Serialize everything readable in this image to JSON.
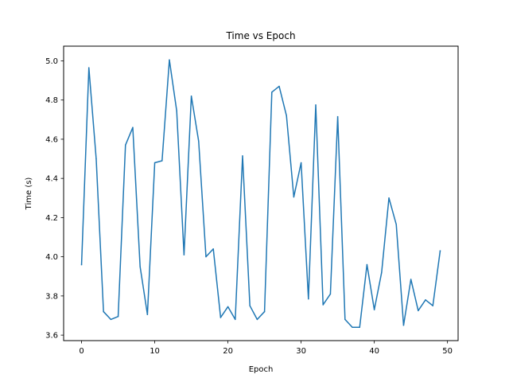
{
  "chart_data": {
    "type": "line",
    "title": "Time vs Epoch",
    "xlabel": "Epoch",
    "ylabel": "Time (s)",
    "xlim": [
      -2.45,
      51.45
    ],
    "ylim": [
      3.572,
      5.075
    ],
    "x_ticks": [
      0,
      10,
      20,
      30,
      40,
      50
    ],
    "y_ticks": [
      3.6,
      3.8,
      4.0,
      4.2,
      4.4,
      4.6,
      4.8,
      5.0
    ],
    "x_tick_labels": [
      "0",
      "10",
      "20",
      "30",
      "40",
      "50"
    ],
    "y_tick_labels": [
      "3.6",
      "3.8",
      "4.0",
      "4.2",
      "4.4",
      "4.6",
      "4.8",
      "5.0"
    ],
    "grid": false,
    "legend": "none",
    "series": [
      {
        "color": "#1f77b4",
        "x": [
          0,
          1,
          2,
          3,
          4,
          5,
          6,
          7,
          8,
          9,
          10,
          11,
          12,
          13,
          14,
          15,
          16,
          17,
          18,
          19,
          20,
          21,
          22,
          23,
          24,
          25,
          26,
          27,
          28,
          29,
          30,
          31,
          32,
          33,
          34,
          35,
          36,
          37,
          38,
          39,
          40,
          41,
          42,
          43,
          44,
          45,
          46,
          47,
          48,
          49
        ],
        "values": [
          3.96,
          4.965,
          4.5,
          3.72,
          3.68,
          3.695,
          4.57,
          4.66,
          3.95,
          3.705,
          4.48,
          4.49,
          5.005,
          4.745,
          4.01,
          4.82,
          4.59,
          4.0,
          4.04,
          3.69,
          3.745,
          3.68,
          4.515,
          3.75,
          3.68,
          3.72,
          4.84,
          4.87,
          4.72,
          4.305,
          4.48,
          3.785,
          4.775,
          3.755,
          3.81,
          4.715,
          3.68,
          3.64,
          3.64,
          3.96,
          3.73,
          3.92,
          4.3,
          4.165,
          3.65,
          3.885,
          3.725,
          3.78,
          3.75,
          4.03
        ]
      }
    ]
  }
}
